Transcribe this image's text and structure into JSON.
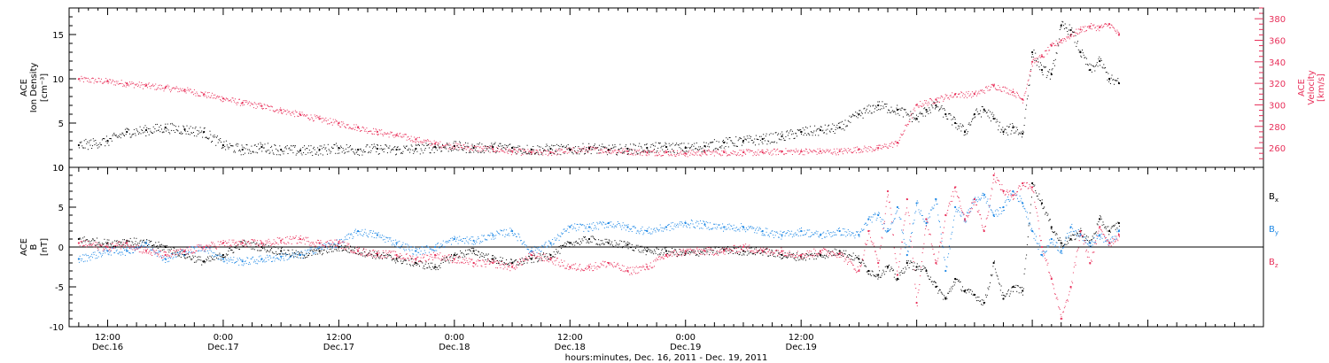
{
  "chart_data": [
    {
      "type": "scatter",
      "panel": "top",
      "ylabel_lines": [
        "ACE",
        "Ion Density",
        "[cm⁻³]"
      ],
      "ylim": [
        0,
        18
      ],
      "yticks": [
        0,
        5,
        10,
        15
      ],
      "y2label_lines": [
        "ACE",
        "Velocity",
        "[km/s]"
      ],
      "y2lim": [
        242,
        390
      ],
      "y2ticks": [
        260,
        280,
        300,
        320,
        340,
        360,
        380
      ],
      "series": [
        {
          "name": "",
          "axis": "left",
          "color": "#000000",
          "x": [
            -3,
            0,
            2,
            4,
            6,
            8,
            10,
            12,
            14,
            16,
            18,
            20,
            22,
            24,
            26,
            28,
            30,
            32,
            34,
            36,
            38,
            40,
            42,
            44,
            46,
            48,
            50,
            52,
            54,
            56,
            58,
            60,
            62,
            64,
            66,
            68,
            70,
            72,
            74,
            76,
            78,
            80,
            82,
            84,
            85,
            86,
            87,
            88,
            89,
            90,
            91,
            92,
            93,
            94,
            95,
            96,
            97,
            98,
            99,
            100,
            101,
            102,
            103,
            104,
            105
          ],
          "y": [
            2.5,
            3.0,
            4.0,
            4.2,
            4.5,
            4.3,
            4.0,
            2.5,
            2.0,
            2.3,
            2.0,
            1.9,
            2.0,
            2.2,
            2.0,
            2.1,
            2.0,
            2.1,
            2.3,
            2.4,
            2.2,
            2.3,
            2.2,
            2.0,
            2.1,
            2.0,
            2.2,
            2.0,
            2.1,
            2.2,
            2.3,
            2.2,
            2.4,
            2.8,
            3.0,
            3.2,
            3.5,
            4.0,
            4.2,
            4.5,
            6.0,
            7.0,
            6.5,
            5.5,
            6.5,
            7.0,
            6.0,
            5.0,
            4.0,
            6.0,
            6.5,
            5.5,
            4.0,
            4.5,
            3.8,
            13.0,
            11.0,
            10.5,
            16.0,
            15.5,
            13.0,
            11.0,
            12.0,
            10.0,
            9.5
          ]
        },
        {
          "name": "",
          "axis": "right",
          "color": "#e8305a",
          "x": [
            -3,
            0,
            2,
            4,
            6,
            8,
            10,
            12,
            14,
            16,
            18,
            20,
            22,
            24,
            26,
            28,
            30,
            32,
            34,
            36,
            38,
            40,
            42,
            44,
            46,
            48,
            50,
            52,
            54,
            56,
            58,
            60,
            62,
            64,
            66,
            68,
            70,
            72,
            74,
            76,
            78,
            80,
            82,
            84,
            86,
            88,
            90,
            92,
            94,
            95,
            96,
            97,
            98,
            99,
            100,
            101,
            102,
            103,
            104,
            105
          ],
          "y": [
            324,
            322,
            320,
            318,
            316,
            314,
            310,
            306,
            302,
            299,
            295,
            291,
            287,
            283,
            279,
            275,
            272,
            268,
            264,
            262,
            260,
            259,
            257,
            256,
            256,
            258,
            259,
            258,
            257,
            256,
            256,
            255,
            256,
            256,
            256,
            256,
            257,
            257,
            257,
            257,
            259,
            260,
            265,
            300,
            305,
            310,
            310,
            318,
            312,
            305,
            340,
            345,
            355,
            360,
            365,
            370,
            373,
            372,
            375,
            365
          ]
        }
      ],
      "xlim": [
        -4,
        120
      ]
    },
    {
      "type": "scatter",
      "panel": "bottom",
      "ylabel_lines": [
        "ACE",
        "B",
        "[nT]"
      ],
      "ylim": [
        -10,
        10
      ],
      "yticks": [
        -10,
        -5,
        0,
        5,
        10
      ],
      "hline": 0,
      "xlim": [
        -4,
        120
      ],
      "xticks": [
        {
          "x": 0,
          "label": "12:00",
          "date": "Dec.16"
        },
        {
          "x": 12,
          "label": "0:00",
          "date": "Dec.17"
        },
        {
          "x": 24,
          "label": "12:00",
          "date": "Dec.17"
        },
        {
          "x": 36,
          "label": "0:00",
          "date": "Dec.18"
        },
        {
          "x": 48,
          "label": "12:00",
          "date": "Dec.18"
        },
        {
          "x": 60,
          "label": "0:00",
          "date": "Dec.19"
        },
        {
          "x": 72,
          "label": "12:00",
          "date": "Dec.19"
        }
      ],
      "legend_placement": "right",
      "series": [
        {
          "name": "Bx",
          "color": "#000000",
          "x": [
            -3,
            0,
            2,
            4,
            6,
            8,
            10,
            12,
            14,
            16,
            18,
            20,
            22,
            24,
            26,
            28,
            30,
            32,
            34,
            36,
            38,
            40,
            42,
            44,
            46,
            48,
            50,
            52,
            54,
            56,
            58,
            60,
            62,
            64,
            66,
            68,
            70,
            72,
            74,
            76,
            78,
            79,
            80,
            81,
            82,
            83,
            84,
            85,
            86,
            87,
            88,
            89,
            90,
            91,
            92,
            93,
            94,
            95,
            96,
            97,
            98,
            99,
            100,
            101,
            102,
            103,
            104,
            105
          ],
          "y": [
            1.0,
            0.5,
            0.8,
            0.5,
            0,
            -1.0,
            -1.8,
            -1.0,
            0.5,
            0,
            -0.5,
            -1.0,
            -0.5,
            0,
            -0.5,
            -1.0,
            -1.5,
            -2.0,
            -2.5,
            -1.0,
            -0.5,
            -1.5,
            -2.0,
            -1.5,
            -1.0,
            0.5,
            1.0,
            0.5,
            0.3,
            -0.5,
            -0.5,
            -0.8,
            -0.5,
            -0.3,
            -0.5,
            -0.5,
            -1.0,
            -1.2,
            -1.0,
            -0.5,
            -1.5,
            -3.0,
            -3.5,
            -2.5,
            -4.0,
            -2.0,
            -2.5,
            -3.0,
            -5.0,
            -6.5,
            -4.0,
            -5.5,
            -6.0,
            -7.0,
            -2.0,
            -6.5,
            -5.0,
            -5.5,
            8.0,
            5.5,
            2.5,
            0.5,
            1.0,
            2.0,
            0.5,
            3.5,
            2.0,
            3.0
          ]
        },
        {
          "name": "By",
          "color": "#1e88e5",
          "x": [
            -3,
            0,
            2,
            4,
            6,
            8,
            10,
            12,
            14,
            16,
            18,
            20,
            22,
            24,
            26,
            28,
            30,
            32,
            34,
            36,
            38,
            40,
            42,
            44,
            46,
            48,
            50,
            52,
            54,
            56,
            58,
            60,
            62,
            64,
            66,
            68,
            70,
            72,
            74,
            76,
            78,
            79,
            80,
            81,
            82,
            83,
            84,
            85,
            86,
            87,
            88,
            89,
            90,
            91,
            92,
            93,
            94,
            95,
            96,
            97,
            98,
            99,
            100,
            101,
            102,
            103,
            104,
            105
          ],
          "y": [
            -1.5,
            -0.5,
            -0.5,
            0.5,
            -1.5,
            -0.5,
            0,
            -1.5,
            -1.8,
            -1.5,
            -1.2,
            -1.0,
            0,
            0.5,
            2.0,
            1.5,
            0.5,
            -0.5,
            0,
            1.0,
            0.8,
            1.5,
            2.0,
            -0.5,
            0.5,
            2.5,
            2.5,
            3.0,
            2.5,
            2.0,
            2.5,
            3.0,
            2.8,
            2.5,
            2.5,
            2.0,
            1.5,
            2.0,
            1.5,
            2.0,
            1.5,
            3.5,
            4.0,
            2.0,
            5.0,
            -1.0,
            5.5,
            3.0,
            6.0,
            -3.0,
            5.0,
            3.5,
            6.0,
            6.5,
            4.0,
            5.0,
            7.0,
            5.5,
            2.0,
            -1.0,
            1.0,
            -0.5,
            2.5,
            1.5,
            0.5,
            1.5,
            0.5,
            2.0
          ]
        },
        {
          "name": "Bz",
          "color": "#e8305a",
          "x": [
            -3,
            0,
            2,
            4,
            6,
            8,
            10,
            12,
            14,
            16,
            18,
            20,
            22,
            24,
            26,
            28,
            30,
            32,
            34,
            36,
            38,
            40,
            42,
            44,
            46,
            48,
            50,
            52,
            54,
            56,
            58,
            60,
            62,
            64,
            66,
            68,
            70,
            72,
            74,
            76,
            78,
            79,
            80,
            81,
            82,
            83,
            84,
            85,
            86,
            87,
            88,
            89,
            90,
            91,
            92,
            93,
            94,
            95,
            96,
            97,
            98,
            99,
            100,
            101,
            102,
            103,
            104,
            105
          ],
          "y": [
            0.5,
            0,
            0.5,
            -0.5,
            -1.0,
            -0.5,
            0,
            0.5,
            0.5,
            0.5,
            0.8,
            1.0,
            0.5,
            0.5,
            -0.5,
            -0.8,
            -1.0,
            -1.5,
            -1.0,
            -1.5,
            -2.0,
            -2.0,
            -2.5,
            -1.0,
            -1.5,
            -2.5,
            -2.5,
            -2.0,
            -3.0,
            -2.5,
            -1.0,
            -0.5,
            -0.5,
            -0.5,
            0,
            -0.5,
            -0.5,
            -1.0,
            -0.5,
            -0.8,
            -3.0,
            2.0,
            -2.0,
            7.0,
            -3.5,
            6.0,
            -7.0,
            3.5,
            -2.0,
            4.0,
            7.5,
            3.5,
            6.0,
            2.0,
            9.0,
            7.0,
            6.5,
            8.0,
            7.5,
            0,
            -4.0,
            -9.0,
            -5.0,
            2.0,
            -2.0,
            2.5,
            0.5,
            1.5
          ]
        }
      ]
    }
  ],
  "xlabel": "hours:minutes, Dec. 16, 2011 - Dec. 19, 2011",
  "legend": [
    {
      "label": "B",
      "sub": "x",
      "color": "#000000"
    },
    {
      "label": "B",
      "sub": "y",
      "color": "#1e88e5"
    },
    {
      "label": "B",
      "sub": "z",
      "color": "#e8305a"
    }
  ]
}
